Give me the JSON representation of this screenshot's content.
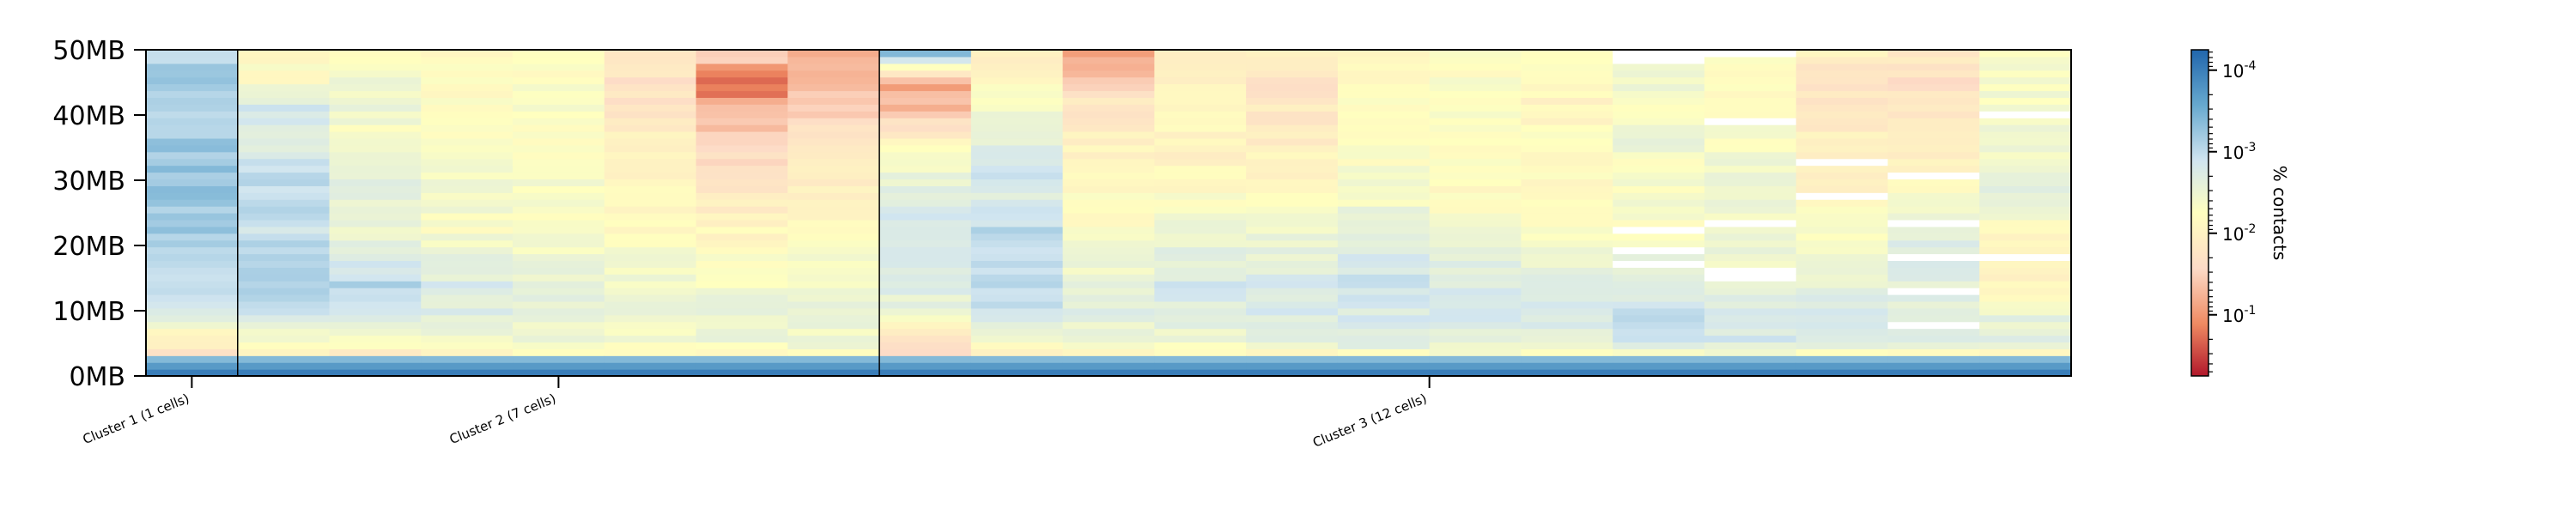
{
  "chart_data": {
    "type": "heatmap",
    "title": "",
    "xlabel": "",
    "ylabel": "",
    "y_tick_labels": [
      "0MB",
      "10MB",
      "20MB",
      "30MB",
      "40MB",
      "50MB"
    ],
    "y_tick_values": [
      0,
      10,
      20,
      30,
      40,
      50
    ],
    "ylim": [
      0,
      50
    ],
    "clusters": [
      {
        "label": "Cluster 1 (1 cells)",
        "cells": 1
      },
      {
        "label": "Cluster 2 (7 cells)",
        "cells": 7
      },
      {
        "label": "Cluster 3 (12 cells)",
        "cells": 12
      }
    ],
    "colorbar": {
      "label": "% contacts",
      "scale": "log",
      "tick_labels": [
        "10^-4",
        "10^-3",
        "10^-2",
        "10^-1"
      ],
      "tick_exponents": [
        -4,
        -3,
        -2,
        -1
      ],
      "colors": [
        "#b2182b",
        "#ef8a62",
        "#fddbc7",
        "#ffffbf",
        "#d1e5f0",
        "#67a9cf",
        "#2166ac"
      ]
    },
    "columns": [
      {
        "cluster": 1,
        "profile": [
          0.75,
          0.58,
          0.4,
          0.32,
          0.28,
          0.26,
          0.25,
          0.25,
          0.26,
          0.27,
          0.26,
          0.3
        ]
      },
      {
        "cluster": 2,
        "profile": [
          0.72,
          0.5,
          0.33,
          0.27,
          0.29,
          0.34,
          0.31,
          0.33,
          0.42,
          0.33,
          0.5,
          0.52
        ]
      },
      {
        "cluster": 2,
        "profile": [
          0.73,
          0.51,
          0.35,
          0.3,
          0.36,
          0.43,
          0.41,
          0.4,
          0.49,
          0.45,
          0.44,
          0.5
        ]
      },
      {
        "cluster": 2,
        "profile": [
          0.72,
          0.48,
          0.38,
          0.37,
          0.42,
          0.49,
          0.45,
          0.46,
          0.5,
          0.48,
          0.52,
          0.52
        ]
      },
      {
        "cluster": 2,
        "profile": [
          0.7,
          0.47,
          0.39,
          0.41,
          0.44,
          0.5,
          0.46,
          0.48,
          0.51,
          0.49,
          0.5,
          0.5
        ]
      },
      {
        "cluster": 2,
        "profile": [
          0.7,
          0.48,
          0.41,
          0.44,
          0.47,
          0.52,
          0.52,
          0.55,
          0.58,
          0.6,
          0.64,
          0.62
        ]
      },
      {
        "cluster": 2,
        "profile": [
          0.68,
          0.45,
          0.43,
          0.46,
          0.49,
          0.55,
          0.6,
          0.64,
          0.7,
          0.74,
          0.9,
          0.66
        ]
      },
      {
        "cluster": 2,
        "profile": [
          0.7,
          0.45,
          0.43,
          0.45,
          0.48,
          0.53,
          0.56,
          0.6,
          0.64,
          0.68,
          0.73,
          0.76
        ]
      },
      {
        "cluster": 3,
        "profile": [
          0.78,
          0.62,
          0.45,
          0.38,
          0.36,
          0.33,
          0.38,
          0.44,
          0.55,
          0.72,
          0.78,
          0.22
        ]
      },
      {
        "cluster": 3,
        "profile": [
          0.74,
          0.48,
          0.35,
          0.3,
          0.34,
          0.3,
          0.38,
          0.34,
          0.42,
          0.45,
          0.52,
          0.58
        ]
      },
      {
        "cluster": 3,
        "profile": [
          0.74,
          0.46,
          0.4,
          0.43,
          0.45,
          0.5,
          0.5,
          0.54,
          0.56,
          0.6,
          0.66,
          0.82
        ]
      },
      {
        "cluster": 3,
        "profile": [
          0.7,
          0.45,
          0.38,
          0.36,
          0.4,
          0.45,
          0.5,
          0.54,
          0.56,
          0.54,
          0.58,
          0.6
        ]
      },
      {
        "cluster": 3,
        "profile": [
          0.7,
          0.42,
          0.37,
          0.36,
          0.4,
          0.44,
          0.52,
          0.54,
          0.58,
          0.6,
          0.62,
          0.6
        ]
      },
      {
        "cluster": 3,
        "profile": [
          0.72,
          0.38,
          0.36,
          0.34,
          0.37,
          0.4,
          0.46,
          0.48,
          0.52,
          0.5,
          0.54,
          0.55
        ]
      },
      {
        "cluster": 3,
        "profile": [
          0.72,
          0.4,
          0.35,
          0.37,
          0.4,
          0.44,
          0.52,
          0.5,
          0.5,
          0.46,
          0.5,
          0.5
        ]
      },
      {
        "cluster": 3,
        "profile": [
          0.7,
          0.4,
          0.36,
          0.38,
          0.46,
          0.5,
          0.52,
          0.53,
          0.5,
          0.56,
          0.52,
          0.52
        ]
      },
      {
        "cluster": 3,
        "profile": [
          0.74,
          0.34,
          0.32,
          0.38,
          0.42,
          0.5,
          0.47,
          0.49,
          0.44,
          0.47,
          0.46,
          0.4
        ]
      },
      {
        "cluster": 3,
        "profile": [
          0.76,
          0.36,
          0.34,
          0.41,
          0.44,
          0.44,
          0.46,
          0.45,
          0.48,
          0.5,
          0.52,
          0.5
        ]
      },
      {
        "cluster": 3,
        "profile": [
          0.76,
          0.38,
          0.36,
          0.42,
          0.45,
          0.48,
          0.56,
          0.58,
          0.56,
          0.6,
          0.62,
          0.58
        ]
      },
      {
        "cluster": 3,
        "profile": [
          0.76,
          0.4,
          0.38,
          0.4,
          0.36,
          0.42,
          0.48,
          0.58,
          0.6,
          0.62,
          0.64,
          0.6
        ]
      },
      {
        "cluster": 3,
        "profile": [
          0.74,
          0.4,
          0.42,
          0.54,
          0.56,
          0.52,
          0.4,
          0.44,
          0.46,
          0.45,
          0.48,
          0.48
        ]
      }
    ]
  }
}
